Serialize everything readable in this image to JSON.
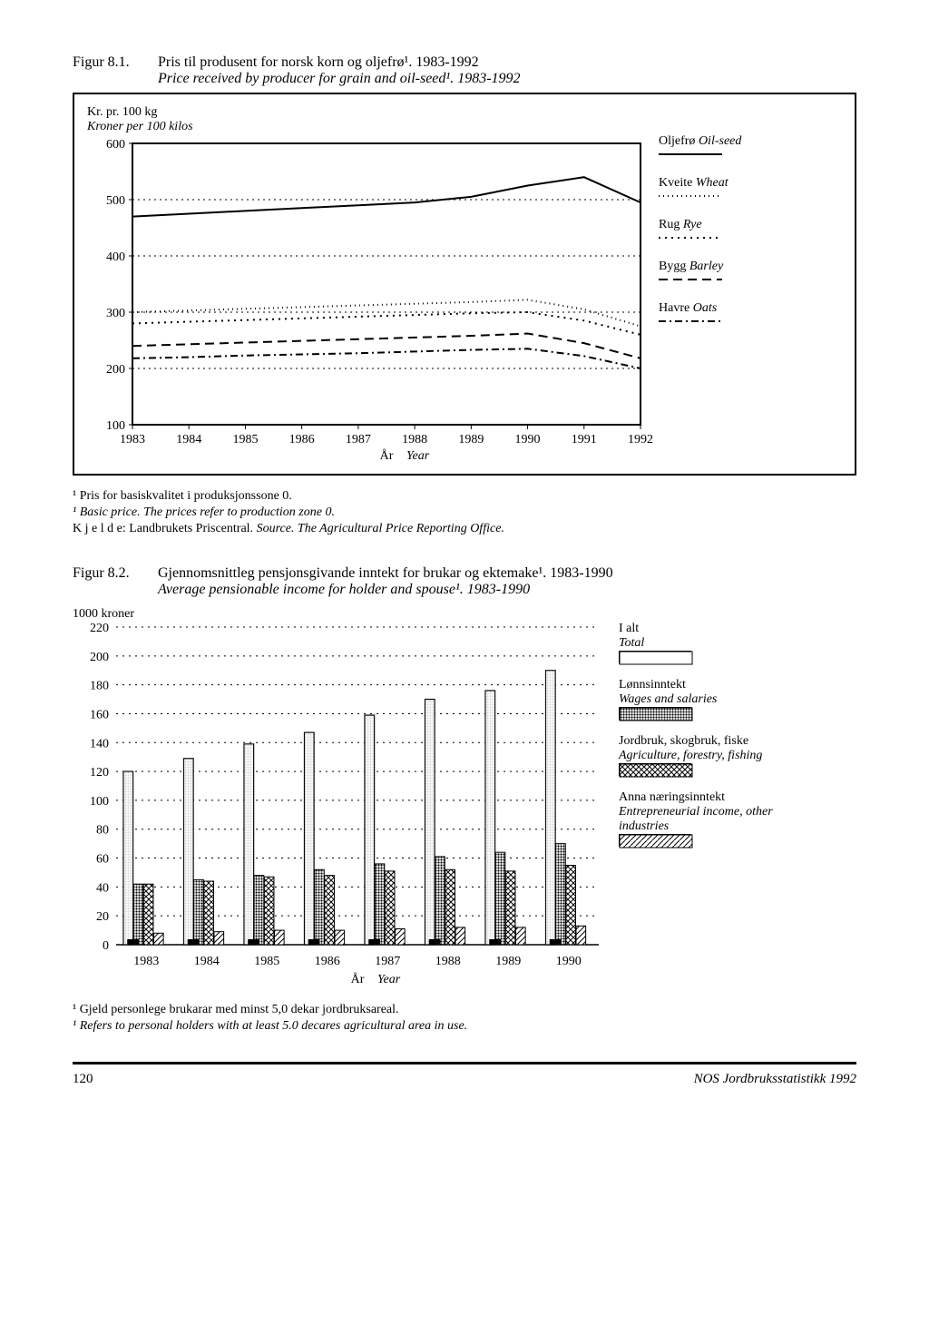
{
  "fig1": {
    "number": "Figur 8.1.",
    "title_no": "Pris til produsent for norsk korn og oljefrø¹. 1983-1992",
    "title_en": "Price received by producer for grain and oil-seed¹. 1983-1992",
    "yaxis_no": "Kr. pr. 100 kg",
    "yaxis_en": "Kroner per 100 kilos",
    "xaxis_no": "År",
    "xaxis_en": "Year",
    "ylim": [
      100,
      600
    ],
    "ytick_step": 100,
    "years": [
      1983,
      1984,
      1985,
      1986,
      1987,
      1988,
      1989,
      1990,
      1991,
      1992
    ],
    "background_color": "#ffffff",
    "grid_color": "#000000",
    "series": [
      {
        "key": "oljefro",
        "label_no": "Oljefrø",
        "label_en": "Oil-seed",
        "dash": "none",
        "width": 2,
        "values": [
          470,
          475,
          480,
          485,
          490,
          495,
          505,
          525,
          540,
          495
        ]
      },
      {
        "key": "kveite",
        "label_no": "Kveite",
        "label_en": "Wheat",
        "dash": "1 4",
        "width": 2,
        "values": [
          300,
          303,
          306,
          309,
          312,
          315,
          318,
          322,
          305,
          275
        ]
      },
      {
        "key": "rug",
        "label_no": "Rug",
        "label_en": "Rye",
        "dash": "2 5",
        "width": 2,
        "values": [
          280,
          283,
          286,
          289,
          292,
          295,
          298,
          300,
          285,
          260
        ]
      },
      {
        "key": "bygg",
        "label_no": "Bygg",
        "label_en": "Barley",
        "dash": "10 6",
        "width": 2,
        "values": [
          240,
          243,
          246,
          249,
          252,
          255,
          258,
          262,
          245,
          218
        ]
      },
      {
        "key": "havre",
        "label_no": "Havre",
        "label_en": "Oats",
        "dash": "8 4 2 4",
        "width": 2,
        "values": [
          218,
          220,
          223,
          225,
          227,
          230,
          233,
          235,
          222,
          200
        ]
      }
    ],
    "foot1_no": "¹ Pris for basiskvalitet i produksjonssone 0.",
    "foot1_en": "¹ Basic price. The prices refer to production zone 0.",
    "source_no": "K j e l d e:  Landbrukets Priscentral.",
    "source_en": "Source.  The Agricultural Price Reporting Office."
  },
  "fig2": {
    "number": "Figur 8.2.",
    "title_no": "Gjennomsnittleg pensjonsgivande inntekt for brukar og ektemake¹. 1983-1990",
    "title_en": "Average pensionable income for holder and spouse¹. 1983-1990",
    "yaxis": "1000 kroner",
    "xaxis_no": "År",
    "xaxis_en": "Year",
    "ylim": [
      0,
      220
    ],
    "ytick_step": 20,
    "years": [
      1983,
      1984,
      1985,
      1986,
      1987,
      1988,
      1989,
      1990
    ],
    "background_color": "#ffffff",
    "series": [
      {
        "key": "total",
        "label_no": "I alt",
        "label_en": "Total",
        "pattern": "solid",
        "values": [
          120,
          129,
          139,
          147,
          159,
          170,
          176,
          190
        ]
      },
      {
        "key": "wages",
        "label_no": "Lønnsinntekt",
        "label_en": "Wages and salaries",
        "pattern": "dense",
        "values": [
          42,
          45,
          48,
          52,
          56,
          61,
          64,
          70
        ]
      },
      {
        "key": "agri",
        "label_no": "Jordbruk, skogbruk, fiske",
        "label_en": "Agriculture, forestry, fishing",
        "pattern": "cross",
        "values": [
          42,
          44,
          47,
          48,
          51,
          52,
          51,
          55
        ]
      },
      {
        "key": "other",
        "label_no": "Anna næringsinntekt",
        "label_en": "Entrepreneurial income, other industries",
        "pattern": "diag",
        "values": [
          8,
          9,
          10,
          10,
          11,
          12,
          12,
          13
        ]
      }
    ],
    "foot1_no": "¹ Gjeld personlege brukarar med minst 5,0 dekar jordbruksareal.",
    "foot1_en": "¹ Refers to personal holders with at least 5.0 decares agricultural area in use."
  },
  "footer": {
    "page": "120",
    "source": "NOS Jordbruksstatistikk 1992"
  }
}
